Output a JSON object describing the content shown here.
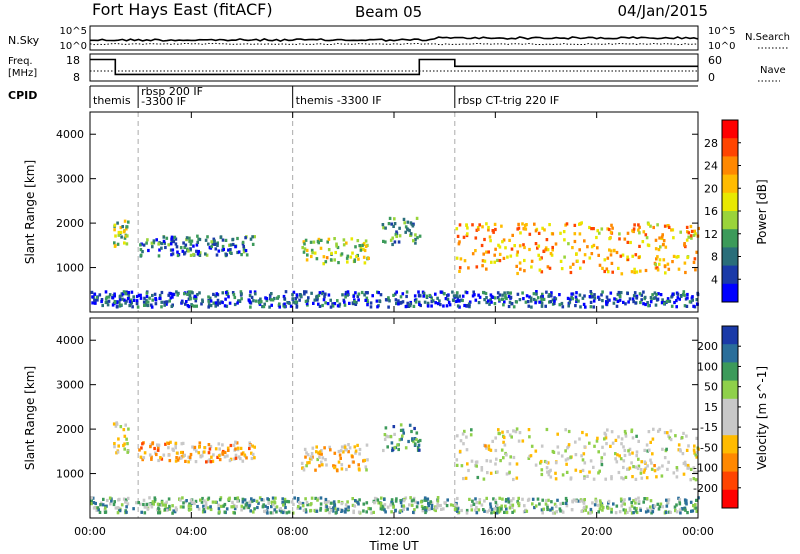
{
  "header": {
    "station": "Fort Hays East (fitACF)",
    "beam": "Beam 05",
    "date": "04/Jan/2015"
  },
  "top_panels": {
    "nsky": {
      "label": "N.Sky",
      "ticks_left": [
        "10^5",
        "10^0"
      ],
      "ticks_right": [
        "10^5",
        "10^0"
      ],
      "legend_right": "N.Search"
    },
    "freq": {
      "label_line1": "Freq.",
      "label_line2": "[MHz]",
      "ticks_left": [
        "18",
        "8"
      ],
      "ticks_right": [
        "60",
        "0"
      ],
      "legend_right": "Nave"
    },
    "cpid": {
      "label": "CPID",
      "segments": [
        {
          "start_h": 0.0,
          "lines": [
            "themis"
          ]
        },
        {
          "start_h": 1.9,
          "lines": [
            "rbsp 200 IF",
            "-3300 IF"
          ]
        },
        {
          "start_h": 8.0,
          "lines": [
            "themis -3300 IF"
          ]
        },
        {
          "start_h": 14.4,
          "lines": [
            "rbsp CT-trig 220 IF"
          ]
        }
      ]
    },
    "freq_steps": [
      {
        "from_h": 0.0,
        "to_h": 1.0,
        "level": 0.85
      },
      {
        "from_h": 1.0,
        "to_h": 13.0,
        "level": 0.2
      },
      {
        "from_h": 13.0,
        "to_h": 14.4,
        "level": 0.85
      },
      {
        "from_h": 14.4,
        "to_h": 24.0,
        "level": 0.55
      }
    ]
  },
  "chart_data": [
    {
      "type": "heatmap",
      "title": "Power",
      "ylabel": "Slant Range [km]",
      "xlabel": "Time UT",
      "xlim": [
        0,
        24
      ],
      "ylim": [
        0,
        4500
      ],
      "x_ticks": [
        "00:00",
        "04:00",
        "08:00",
        "12:00",
        "16:00",
        "20:00",
        "00:00"
      ],
      "y_ticks": [
        1000,
        2000,
        3000,
        4000
      ],
      "colorbar": {
        "label": "Power [dB]",
        "ticks": [
          28,
          24,
          20,
          16,
          12,
          8,
          4
        ],
        "colors": [
          "#ff0000",
          "#ff4400",
          "#ff8800",
          "#ffbb00",
          "#e8e800",
          "#9ad43a",
          "#3c9a5a",
          "#2a6e7a",
          "#1a3aa8",
          "#0000ff"
        ]
      },
      "regions": [
        {
          "t0": 0.9,
          "t1": 1.5,
          "r0": 1450,
          "r1": 2150,
          "level": 0.45
        },
        {
          "t0": 1.9,
          "t1": 6.5,
          "r0": 1250,
          "r1": 1700,
          "level": 0.2
        },
        {
          "t0": 8.3,
          "t1": 11.0,
          "r0": 1050,
          "r1": 1650,
          "level": 0.5
        },
        {
          "t0": 11.5,
          "t1": 13.0,
          "r0": 1500,
          "r1": 2100,
          "level": 0.3
        },
        {
          "t0": 14.4,
          "t1": 24.0,
          "r0": 850,
          "r1": 2000,
          "level": 0.7
        },
        {
          "t0": 0.0,
          "t1": 24.0,
          "r0": 100,
          "r1": 450,
          "level": 0.15
        }
      ]
    },
    {
      "type": "heatmap",
      "title": "Velocity",
      "ylabel": "Slant Range [km]",
      "xlabel": "Time UT",
      "xlim": [
        0,
        24
      ],
      "ylim": [
        0,
        4500
      ],
      "x_ticks": [
        "00:00",
        "04:00",
        "08:00",
        "12:00",
        "16:00",
        "20:00",
        "00:00"
      ],
      "y_ticks": [
        1000,
        2000,
        3000,
        4000
      ],
      "colorbar": {
        "label": "Velocity [m s^-1]",
        "ticks": [
          "200",
          "100",
          "50",
          "15",
          "-15",
          "-50",
          "-100",
          "-200"
        ],
        "colors": [
          "#1a3aa8",
          "#2a6e9a",
          "#3c9a5a",
          "#8fd04a",
          "#c8c8c8",
          "#c8c8c8",
          "#ffbb00",
          "#ff8800",
          "#ff4400",
          "#ff0000"
        ]
      },
      "regions": [
        {
          "t0": 0.9,
          "t1": 1.5,
          "r0": 1450,
          "r1": 2150,
          "level": 0.5
        },
        {
          "t0": 1.9,
          "t1": 6.5,
          "r0": 1250,
          "r1": 1700,
          "level": 0.35
        },
        {
          "t0": 8.3,
          "t1": 11.0,
          "r0": 1050,
          "r1": 1650,
          "level": 0.4
        },
        {
          "t0": 11.5,
          "t1": 13.0,
          "r0": 1500,
          "r1": 2100,
          "level": 0.75
        },
        {
          "t0": 14.4,
          "t1": 24.0,
          "r0": 850,
          "r1": 2000,
          "level": 0.5
        },
        {
          "t0": 0.0,
          "t1": 24.0,
          "r0": 100,
          "r1": 450,
          "level": 0.7
        }
      ]
    }
  ]
}
